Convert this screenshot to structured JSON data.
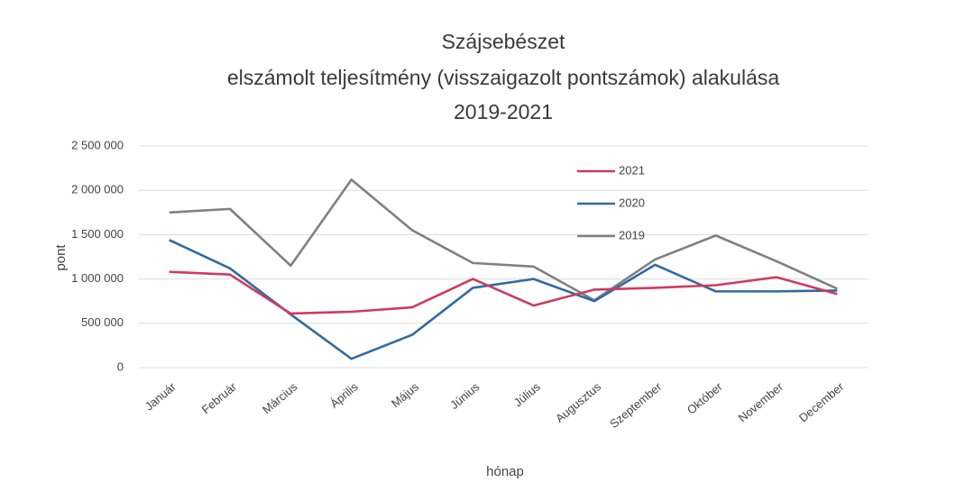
{
  "chart_data": {
    "type": "line",
    "title": [
      "Szájsebészet",
      "elszámolt teljesítmény (visszaigazolt pontszámok) alakulása",
      "2019-2021"
    ],
    "xlabel": "hónap",
    "ylabel": "pont",
    "categories": [
      "Január",
      "Február",
      "Március",
      "Április",
      "Május",
      "Június",
      "Július",
      "Augusztus",
      "Szeptember",
      "Október",
      "November",
      "December"
    ],
    "series": [
      {
        "name": "2021",
        "color": "#d03a5e",
        "values": [
          1080000,
          1050000,
          610000,
          630000,
          680000,
          1000000,
          700000,
          880000,
          900000,
          930000,
          1020000,
          830000
        ]
      },
      {
        "name": "2020",
        "color": "#2f6ba3",
        "values": [
          1440000,
          1120000,
          600000,
          100000,
          370000,
          900000,
          1000000,
          750000,
          1160000,
          860000,
          860000,
          870000
        ]
      },
      {
        "name": "2019",
        "color": "#808080",
        "values": [
          1750000,
          1790000,
          1150000,
          2120000,
          1550000,
          1180000,
          1140000,
          760000,
          1220000,
          1490000,
          1200000,
          890000
        ]
      }
    ],
    "ylim": [
      0,
      2500000
    ],
    "yticks": [
      0,
      {
        "value": 500000,
        "label": "500 000"
      },
      {
        "value": 1000000,
        "label": "1 000 000"
      },
      {
        "value": 1500000,
        "label": "1 500 000"
      },
      {
        "value": 2000000,
        "label": "2 000 000"
      },
      {
        "value": 2500000,
        "label": "2 500 000"
      }
    ],
    "grid": true,
    "legend": "upper right"
  }
}
